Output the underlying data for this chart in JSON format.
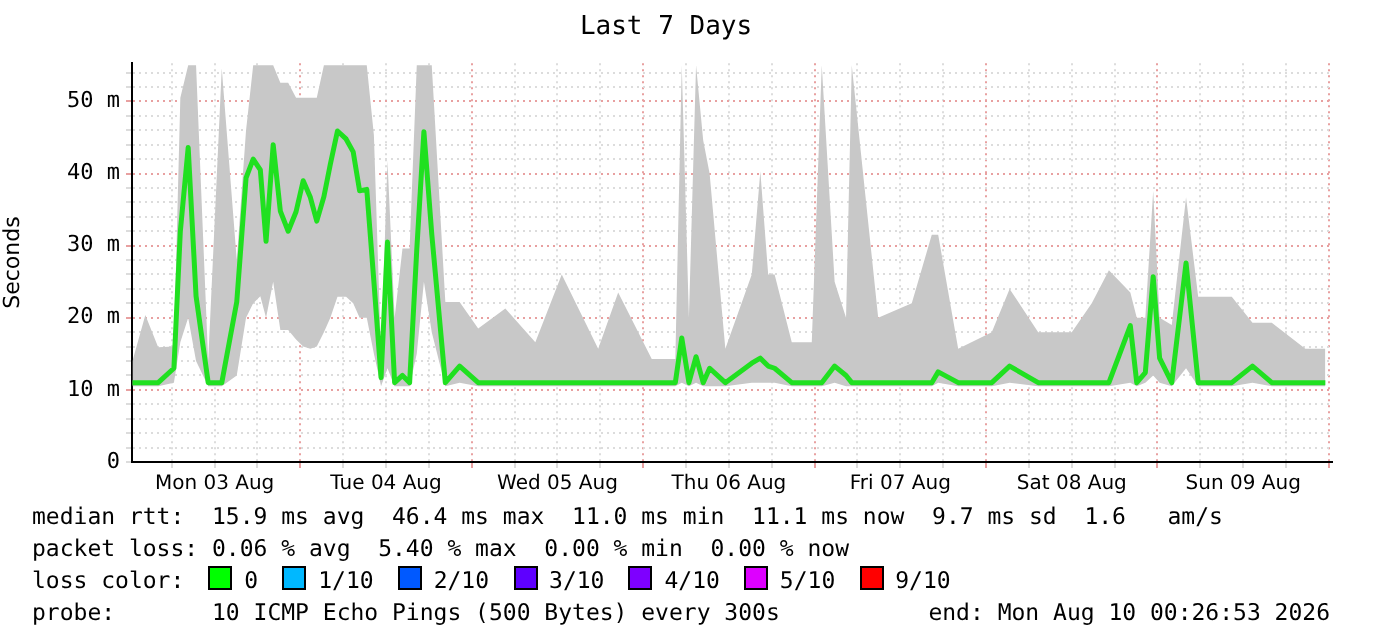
{
  "chart_data": {
    "type": "line",
    "title": "Last 7 Days",
    "ylabel": "Seconds",
    "x": [
      "2026-08-03T00:30",
      "2026-08-03T02:18",
      "2026-08-03T04:06",
      "2026-08-03T06:18",
      "2026-08-03T07:12",
      "2026-08-03T08:18",
      "2026-08-03T09:24",
      "2026-08-03T11:06",
      "2026-08-03T13:00",
      "2026-08-03T15:06",
      "2026-08-03T16:24",
      "2026-08-03T17:24",
      "2026-08-03T18:24",
      "2026-08-03T19:12",
      "2026-08-03T20:12",
      "2026-08-03T21:12",
      "2026-08-03T22:18",
      "2026-08-03T23:24",
      "2026-08-04T00:24",
      "2026-08-04T01:24",
      "2026-08-04T02:18",
      "2026-08-04T03:18",
      "2026-08-04T04:12",
      "2026-08-04T05:12",
      "2026-08-04T06:24",
      "2026-08-04T07:24",
      "2026-08-04T08:18",
      "2026-08-04T09:18",
      "2026-08-04T10:18",
      "2026-08-04T11:18",
      "2026-08-04T12:12",
      "2026-08-04T13:12",
      "2026-08-04T14:18",
      "2026-08-04T15:18",
      "2026-08-04T16:18",
      "2026-08-04T17:18",
      "2026-08-04T18:24",
      "2026-08-04T20:18",
      "2026-08-04T22:18",
      "2026-08-05T00:54",
      "2026-08-05T04:42",
      "2026-08-05T08:54",
      "2026-08-05T12:36",
      "2026-08-05T17:42",
      "2026-08-05T20:30",
      "2026-08-06T01:12",
      "2026-08-06T04:30",
      "2026-08-06T05:24",
      "2026-08-06T06:24",
      "2026-08-06T07:24",
      "2026-08-06T08:24",
      "2026-08-06T09:18",
      "2026-08-06T11:30",
      "2026-08-06T15:12",
      "2026-08-06T16:24",
      "2026-08-06T17:30",
      "2026-08-06T18:24",
      "2026-08-06T20:48",
      "2026-08-06T23:36",
      "2026-08-07T01:00",
      "2026-08-07T02:48",
      "2026-08-07T04:24",
      "2026-08-07T05:12",
      "2026-08-07T08:54",
      "2026-08-07T13:36",
      "2026-08-07T16:24",
      "2026-08-07T17:18",
      "2026-08-07T20:06",
      "2026-08-08T00:48",
      "2026-08-08T03:18",
      "2026-08-08T07:18",
      "2026-08-08T12:00",
      "2026-08-08T14:48",
      "2026-08-08T17:12",
      "2026-08-08T20:12",
      "2026-08-08T21:06",
      "2026-08-08T22:18",
      "2026-08-08T23:24",
      "2026-08-09T00:18",
      "2026-08-09T02:00",
      "2026-08-09T04:00",
      "2026-08-09T05:42",
      "2026-08-09T10:24",
      "2026-08-09T13:18",
      "2026-08-09T16:00",
      "2026-08-09T20:42",
      "2026-08-09T23:30"
    ],
    "series": [
      {
        "color": "#20e020",
        "values": [
          11,
          11,
          11,
          13,
          32,
          43.6,
          23,
          11,
          11,
          22.2,
          39.4,
          42,
          40.5,
          30.6,
          44,
          34.8,
          32,
          34.7,
          39,
          36.7,
          33.4,
          36.8,
          41.3,
          45.9,
          44.8,
          43,
          37.6,
          37.8,
          25,
          11.7,
          30.5,
          11,
          12,
          11,
          29.4,
          45.8,
          31.6,
          11,
          13.3,
          11,
          11,
          11,
          11,
          11,
          11,
          11,
          11,
          17.2,
          11,
          14.6,
          11,
          13,
          11,
          13.7,
          14.4,
          13.3,
          13,
          11,
          11,
          11,
          13.3,
          12,
          11,
          11,
          11,
          11,
          12.5,
          11,
          11,
          13.3,
          11,
          11,
          11,
          11,
          18.9,
          11,
          12.4,
          25.7,
          14.4,
          11,
          27.6,
          11,
          11,
          13.3,
          11,
          11,
          11
        ],
        "lower": [
          10.5,
          10.5,
          10.5,
          11,
          16.6,
          20,
          14,
          10.5,
          10.5,
          12,
          20,
          22,
          23,
          20,
          25,
          18.3,
          18.3,
          17,
          16,
          15.7,
          16,
          18,
          20,
          22.9,
          22.9,
          22,
          20,
          20,
          15,
          10.5,
          13,
          10.5,
          10.5,
          10.5,
          15,
          25,
          18,
          10.5,
          11,
          10.5,
          10.5,
          10.5,
          10.5,
          10.5,
          10.5,
          10.5,
          10.5,
          11,
          10.5,
          11,
          10.5,
          10.5,
          10.5,
          11,
          11,
          11,
          11,
          10.5,
          10.5,
          10.5,
          11,
          10.5,
          10.5,
          10.5,
          10.5,
          10.5,
          11,
          10.5,
          10.5,
          11,
          10.5,
          10.5,
          10.5,
          10.5,
          11,
          10.5,
          11,
          12,
          11,
          10.5,
          13,
          10.5,
          10.5,
          11,
          10.5,
          10.5,
          10.5
        ],
        "upper": [
          14,
          20.4,
          15.9,
          16,
          50.5,
          55,
          55,
          14,
          54.6,
          28,
          46,
          55,
          55,
          55,
          55,
          52.6,
          52.6,
          50.5,
          50.5,
          50.5,
          50.5,
          55,
          55,
          55,
          55,
          55,
          55,
          55,
          45.3,
          15,
          41.8,
          20,
          29.6,
          29.6,
          55,
          55,
          55,
          22.2,
          22.2,
          18.5,
          21.3,
          16.6,
          26,
          15.7,
          23.5,
          14.3,
          14.3,
          55,
          20,
          55,
          44.6,
          40,
          15.7,
          26,
          40.3,
          26,
          26,
          16.6,
          16.6,
          55,
          25,
          20,
          55,
          20,
          22,
          31.5,
          31.5,
          15.7,
          18,
          24,
          18,
          18,
          22,
          26.6,
          23.5,
          20,
          20,
          37.6,
          20,
          19,
          36.7,
          22.9,
          22.9,
          19.3,
          19.3,
          15.7,
          15.7
        ]
      }
    ],
    "xlim": [
      "2026-08-03T00:26",
      "2026-08-10T00:26"
    ],
    "xticks": [
      {
        "value": "2026-08-03T06:00",
        "label": null
      },
      {
        "value": "2026-08-03T12:00",
        "label": "Mon 03 Aug"
      },
      {
        "value": "2026-08-03T18:00",
        "label": null
      },
      {
        "value": "2026-08-04T00:00",
        "label": null
      },
      {
        "value": "2026-08-04T06:00",
        "label": null
      },
      {
        "value": "2026-08-04T12:00",
        "label": "Tue 04 Aug"
      },
      {
        "value": "2026-08-04T18:00",
        "label": null
      },
      {
        "value": "2026-08-05T00:00",
        "label": null
      },
      {
        "value": "2026-08-05T06:00",
        "label": null
      },
      {
        "value": "2026-08-05T12:00",
        "label": "Wed 05 Aug"
      },
      {
        "value": "2026-08-05T18:00",
        "label": null
      },
      {
        "value": "2026-08-06T00:00",
        "label": null
      },
      {
        "value": "2026-08-06T06:00",
        "label": null
      },
      {
        "value": "2026-08-06T12:00",
        "label": "Thu 06 Aug"
      },
      {
        "value": "2026-08-06T18:00",
        "label": null
      },
      {
        "value": "2026-08-07T00:00",
        "label": null
      },
      {
        "value": "2026-08-07T06:00",
        "label": null
      },
      {
        "value": "2026-08-07T12:00",
        "label": "Fri 07 Aug"
      },
      {
        "value": "2026-08-07T18:00",
        "label": null
      },
      {
        "value": "2026-08-08T00:00",
        "label": null
      },
      {
        "value": "2026-08-08T06:00",
        "label": null
      },
      {
        "value": "2026-08-08T12:00",
        "label": "Sat 08 Aug"
      },
      {
        "value": "2026-08-08T18:00",
        "label": null
      },
      {
        "value": "2026-08-09T00:00",
        "label": null
      },
      {
        "value": "2026-08-09T06:00",
        "label": null
      },
      {
        "value": "2026-08-09T12:00",
        "label": "Sun 09 Aug"
      },
      {
        "value": "2026-08-09T18:00",
        "label": null
      },
      {
        "value": "2026-08-10T00:00",
        "label": null
      }
    ],
    "ylim": [
      0,
      55.3
    ],
    "yticks": [
      0,
      {
        "value": 2,
        "label": null
      },
      {
        "value": 4,
        "label": null
      },
      {
        "value": 6,
        "label": null
      },
      {
        "value": 8,
        "label": null
      },
      {
        "value": 10,
        "label": "10 m"
      },
      {
        "value": 12,
        "label": null
      },
      {
        "value": 14,
        "label": null
      },
      {
        "value": 16,
        "label": null
      },
      {
        "value": 18,
        "label": null
      },
      {
        "value": 20,
        "label": "20 m"
      },
      {
        "value": 22,
        "label": null
      },
      {
        "value": 24,
        "label": null
      },
      {
        "value": 26,
        "label": null
      },
      {
        "value": 28,
        "label": null
      },
      {
        "value": 30,
        "label": "30 m"
      },
      {
        "value": 32,
        "label": null
      },
      {
        "value": 34,
        "label": null
      },
      {
        "value": 36,
        "label": null
      },
      {
        "value": 38,
        "label": null
      },
      {
        "value": 40,
        "label": "40 m"
      },
      {
        "value": 42,
        "label": null
      },
      {
        "value": 44,
        "label": null
      },
      {
        "value": 46,
        "label": null
      },
      {
        "value": 48,
        "label": null
      },
      {
        "value": 50,
        "label": "50 m"
      },
      {
        "value": 52,
        "label": null
      },
      {
        "value": 54,
        "label": null
      }
    ],
    "grid": true,
    "marker": "none",
    "line_style": "solid",
    "annotations": [
      "median rtt:  15.9 ms avg  46.4 ms max  11.0 ms min  11.1 ms now  9.7 ms sd  1.6   am/s",
      "packet loss: 0.06 % avg  5.40 % max  0.00 % min  0.00 % now",
      "loss color:",
      "0",
      "1/10",
      "2/10",
      "3/10",
      "4/10",
      "5/10",
      "9/10",
      "probe:       10 ICMP Echo Pings (500 Bytes) every 300s",
      "end: Mon Aug 10 00:26:53 2026"
    ]
  }
}
